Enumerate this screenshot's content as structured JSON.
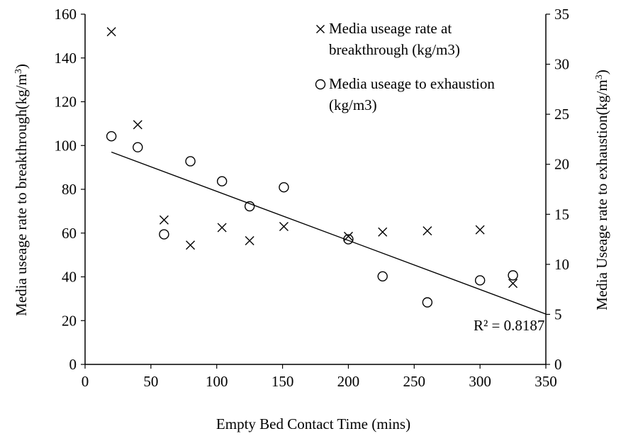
{
  "chart_data": {
    "type": "scatter",
    "xlabel": "Empty Bed Contact Time (mins)",
    "ylabel_left": "Media useage rate to breakthrough",
    "ylabel_left_unit": "(kg/m",
    "ylabel_left_unit_sup": "3",
    "ylabel_left_unit_close": ")",
    "ylabel_right": "Media Useage rate to exhaustion",
    "ylabel_right_unit": "(kg/m",
    "ylabel_right_unit_sup": "3",
    "ylabel_right_unit_close": ")",
    "xlim": [
      0,
      350
    ],
    "ylim_left": [
      0,
      160
    ],
    "ylim_right": [
      0,
      35
    ],
    "x_ticks": [
      "0",
      "50",
      "100",
      "150",
      "200",
      "250",
      "300",
      "350"
    ],
    "y_left_ticks": [
      "0",
      "20",
      "40",
      "60",
      "80",
      "100",
      "120",
      "140",
      "160"
    ],
    "y_right_ticks": [
      "0",
      "5",
      "10",
      "15",
      "20",
      "25",
      "30",
      "35"
    ],
    "grid": false,
    "legend_position": "top-right",
    "series": [
      {
        "name": "Media useage rate at breakthrough (kg/m3)",
        "legend_lines": [
          "Media useage rate at",
          "breakthrough (kg/m3)"
        ],
        "marker": "x",
        "axis": "left",
        "x": [
          20,
          40,
          60,
          80,
          104,
          125,
          151,
          200,
          226,
          260,
          300,
          325
        ],
        "y": [
          152,
          109.5,
          66,
          54.5,
          62.5,
          56.5,
          63,
          58.5,
          60.5,
          61,
          61.5,
          37
        ]
      },
      {
        "name": "Media useage to exhaustion (kg/m3)",
        "legend_lines": [
          "Media useage to exhaustion",
          "(kg/m3)"
        ],
        "marker": "circle",
        "axis": "right",
        "x": [
          20,
          40,
          60,
          80,
          104,
          125,
          151,
          200,
          226,
          260,
          300,
          325
        ],
        "y": [
          22.8,
          21.7,
          13.0,
          20.3,
          18.3,
          15.8,
          17.7,
          12.5,
          8.8,
          6.2,
          8.4,
          8.9
        ]
      }
    ],
    "trendline": {
      "axis": "left",
      "x": [
        20,
        350
      ],
      "y": [
        97,
        23
      ],
      "label": "R² = 0.8187"
    }
  }
}
